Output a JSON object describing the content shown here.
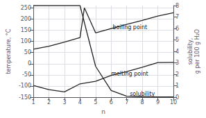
{
  "chart_data": {
    "type": "line",
    "xlabel": "n",
    "ylabel": "temperature, °C",
    "y2label": "solubility,\ng per 100 g H₂O",
    "xlim": [
      1,
      10
    ],
    "xticks": [
      1,
      2,
      3,
      4,
      5,
      6,
      7,
      8,
      9,
      10
    ],
    "ylim": [
      -150,
      260
    ],
    "yticks": [
      -150,
      -100,
      -50,
      0,
      50,
      100,
      150,
      200,
      250
    ],
    "y2lim": [
      0,
      8
    ],
    "y2ticks": [
      0,
      1,
      2,
      3,
      4,
      5,
      6,
      7,
      8
    ],
    "grid": true,
    "series": [
      {
        "x": [
          1,
          2,
          3,
          4,
          4.28,
          5,
          6,
          7,
          8,
          9,
          10
        ],
        "values": [
          65,
          78,
          97,
          117,
          250,
          138,
          157,
          176,
          194,
          213,
          228
        ],
        "color": "#222222"
      },
      {
        "x": [
          1,
          2,
          3,
          4,
          5,
          6,
          7,
          8,
          9,
          10
        ],
        "values": [
          -97,
          -116,
          -126,
          -90,
          -79,
          -52,
          -35,
          -16,
          5,
          6
        ],
        "color": "#222222"
      },
      {
        "x": [
          1,
          2,
          3,
          4,
          5,
          6,
          7,
          8,
          9,
          10
        ],
        "values": [
          8.0,
          8.0,
          8.0,
          8.0,
          2.7,
          0.59,
          0.09,
          0.05,
          0.03,
          0.02
        ],
        "color": "#222222",
        "axis": "y2"
      }
    ],
    "annotations": [
      {
        "text": "boiling point",
        "x": 6.1,
        "y": 163
      },
      {
        "text": "melting point",
        "x": 6.0,
        "y": -47
      },
      {
        "text": "solubility",
        "x": 7.2,
        "y": 0.28,
        "axis": "y2"
      }
    ]
  }
}
